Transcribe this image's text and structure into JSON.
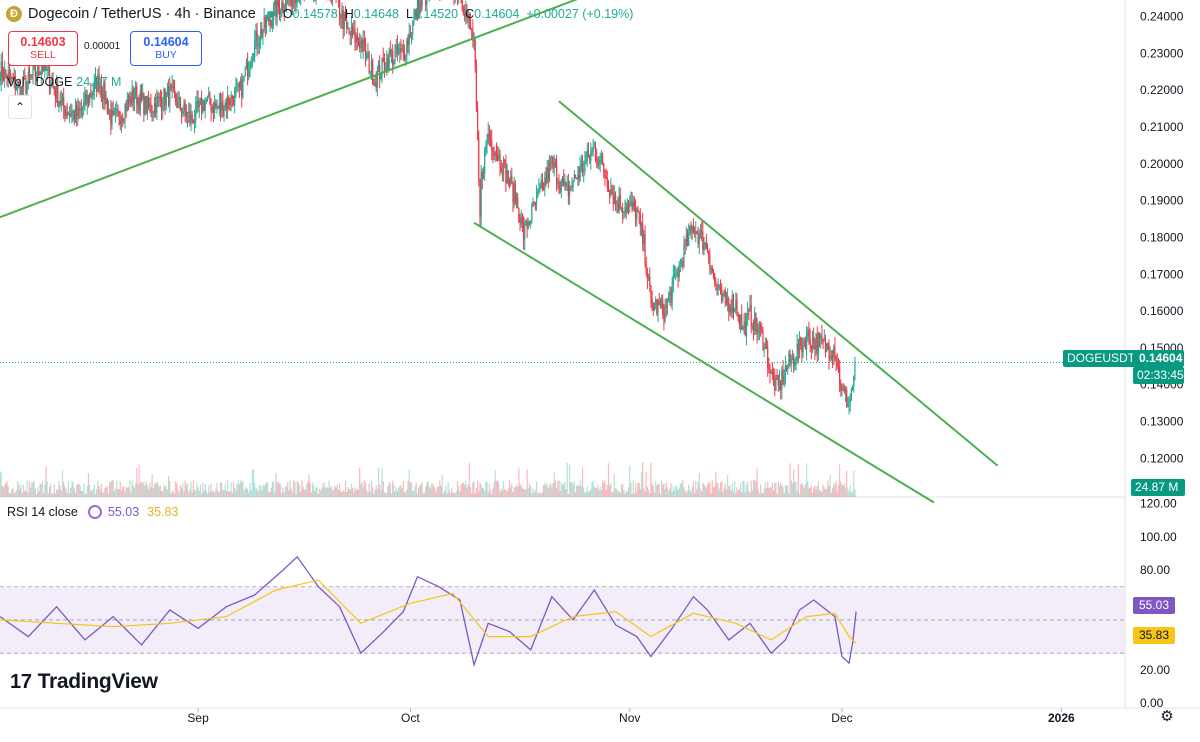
{
  "header": {
    "logo_text": "Ð",
    "title": "Dogecoin / TetherUS · 4h · Binance",
    "open_label": "O",
    "open": "0.14578",
    "high_label": "H",
    "high": "0.14648",
    "low_label": "L",
    "low": "0.14520",
    "close_label": "C",
    "close": "0.14604",
    "change": "+0.00027 (+0.19%)"
  },
  "trade": {
    "sell_price": "0.14603",
    "sell_label": "SELL",
    "spread": "0.00001",
    "buy_price": "0.14604",
    "buy_label": "BUY"
  },
  "volume_legend": {
    "label": "Vol · DOGE",
    "value": "24.87 M"
  },
  "collapse_icon": "chevron-up-icon",
  "rsi_legend": {
    "label": "RSI 14 close",
    "rsi": "55.03",
    "ma": "35.83"
  },
  "branding": {
    "name": "TradingView",
    "mark": "17"
  },
  "price_tags": {
    "symbol": "DOGEUSDT",
    "last_price": "0.14604",
    "countdown": "02:33:45",
    "volume": "24.87 M",
    "rsi": "55.03",
    "rsi_ma": "35.83"
  },
  "colors": {
    "up": "#22ab94",
    "down": "#f23645",
    "trendline": "#4caf50",
    "rsi": "#7e57c2",
    "rsi_ma": "#f5c518",
    "rsi_band": "#ede7f6"
  },
  "chart_data": {
    "type": "candlestick",
    "symbol": "DOGEUSDT",
    "interval": "4h",
    "exchange": "Binance",
    "price_axis": {
      "ticks": [
        "0.24000",
        "0.23000",
        "0.22000",
        "0.21000",
        "0.20000",
        "0.19000",
        "0.18000",
        "0.17000",
        "0.16000",
        "0.15000",
        "0.14000",
        "0.13000",
        "0.12000"
      ],
      "range": [
        0.1095,
        0.2445
      ]
    },
    "time_axis": {
      "labels": [
        "Sep",
        "Oct",
        "Nov",
        "Dec",
        "2026"
      ],
      "label_dates": [
        "2025-09-01",
        "2025-10-01",
        "2025-11-01",
        "2025-12-01",
        "2026-01-01"
      ],
      "range": [
        "2025-08-04",
        "2026-01-10"
      ]
    },
    "price_path": [
      [
        "2025-08-04",
        0.2255
      ],
      [
        "2025-08-07",
        0.22
      ],
      [
        "2025-08-10",
        0.227
      ],
      [
        "2025-08-13",
        0.215
      ],
      [
        "2025-08-15",
        0.213
      ],
      [
        "2025-08-18",
        0.223
      ],
      [
        "2025-08-20",
        0.211
      ],
      [
        "2025-08-23",
        0.219
      ],
      [
        "2025-08-25",
        0.215
      ],
      [
        "2025-08-28",
        0.219
      ],
      [
        "2025-08-31",
        0.212
      ],
      [
        "2025-09-02",
        0.217
      ],
      [
        "2025-09-04",
        0.215
      ],
      [
        "2025-09-07",
        0.22
      ],
      [
        "2025-09-09",
        0.233
      ],
      [
        "2025-09-12",
        0.242
      ],
      [
        "2025-09-15",
        0.247
      ],
      [
        "2025-09-18",
        0.246
      ],
      [
        "2025-09-20",
        0.248
      ],
      [
        "2025-09-22",
        0.236
      ],
      [
        "2025-09-24",
        0.233
      ],
      [
        "2025-09-26",
        0.223
      ],
      [
        "2025-09-28",
        0.229
      ],
      [
        "2025-09-30",
        0.23
      ],
      [
        "2025-10-02",
        0.242
      ],
      [
        "2025-10-04",
        0.248
      ],
      [
        "2025-10-06",
        0.25
      ],
      [
        "2025-10-08",
        0.247
      ],
      [
        "2025-10-10",
        0.233
      ],
      [
        "2025-10-10T20",
        0.185
      ],
      [
        "2025-10-11",
        0.196
      ],
      [
        "2025-10-12",
        0.208
      ],
      [
        "2025-10-14",
        0.2
      ],
      [
        "2025-10-16",
        0.19
      ],
      [
        "2025-10-17",
        0.181
      ],
      [
        "2025-10-18",
        0.186
      ],
      [
        "2025-10-20",
        0.195
      ],
      [
        "2025-10-21",
        0.2
      ],
      [
        "2025-10-23",
        0.192
      ],
      [
        "2025-10-25",
        0.198
      ],
      [
        "2025-10-27",
        0.204
      ],
      [
        "2025-10-28",
        0.2
      ],
      [
        "2025-10-30",
        0.19
      ],
      [
        "2025-11-01",
        0.188
      ],
      [
        "2025-11-02",
        0.187
      ],
      [
        "2025-11-03",
        0.178
      ],
      [
        "2025-11-04",
        0.162
      ],
      [
        "2025-11-05",
        0.161
      ],
      [
        "2025-11-06",
        0.16
      ],
      [
        "2025-11-07",
        0.166
      ],
      [
        "2025-11-09",
        0.178
      ],
      [
        "2025-11-10",
        0.183
      ],
      [
        "2025-11-11",
        0.18
      ],
      [
        "2025-11-12",
        0.177
      ],
      [
        "2025-11-13",
        0.168
      ],
      [
        "2025-11-14",
        0.163
      ],
      [
        "2025-11-16",
        0.162
      ],
      [
        "2025-11-17",
        0.155
      ],
      [
        "2025-11-18",
        0.159
      ],
      [
        "2025-11-20",
        0.152
      ],
      [
        "2025-11-21",
        0.142
      ],
      [
        "2025-11-22",
        0.139
      ],
      [
        "2025-11-23",
        0.144
      ],
      [
        "2025-11-25",
        0.15
      ],
      [
        "2025-11-26",
        0.153
      ],
      [
        "2025-11-28",
        0.151
      ],
      [
        "2025-11-29",
        0.15
      ],
      [
        "2025-11-30",
        0.15
      ],
      [
        "2025-12-01",
        0.138
      ],
      [
        "2025-12-02",
        0.135
      ],
      [
        "2025-12-02T12",
        0.14
      ],
      [
        "2025-12-03",
        0.146
      ]
    ],
    "trendlines": [
      {
        "name": "Rising support",
        "from": [
          "2025-08-04",
          0.1855
        ],
        "to": [
          "2025-10-27",
          0.2465
        ]
      },
      {
        "name": "Falling wedge resistance",
        "from": [
          "2025-10-22",
          0.217
        ],
        "to": [
          "2025-12-23",
          0.118
        ]
      },
      {
        "name": "Falling wedge support",
        "from": [
          "2025-10-10",
          0.184
        ],
        "to": [
          "2025-12-14",
          0.108
        ]
      }
    ],
    "last_price": 0.14604,
    "volume": {
      "last": "24.87 M"
    },
    "rsi": {
      "period": 14,
      "source": "close",
      "value": 55.03,
      "ma_value": 35.83,
      "axis_ticks": [
        "120.00",
        "100.00",
        "80.00",
        "60.00",
        "40.00",
        "20.00",
        "0.00"
      ],
      "range": [
        -3,
        124
      ],
      "bands": [
        30,
        70
      ],
      "midline": 50,
      "path": [
        [
          "2025-08-04",
          52
        ],
        [
          "2025-08-08",
          40
        ],
        [
          "2025-08-12",
          58
        ],
        [
          "2025-08-16",
          38
        ],
        [
          "2025-08-20",
          52
        ],
        [
          "2025-08-24",
          35
        ],
        [
          "2025-08-28",
          56
        ],
        [
          "2025-09-01",
          45
        ],
        [
          "2025-09-05",
          58
        ],
        [
          "2025-09-09",
          65
        ],
        [
          "2025-09-13",
          80
        ],
        [
          "2025-09-15",
          88
        ],
        [
          "2025-09-18",
          70
        ],
        [
          "2025-09-21",
          58
        ],
        [
          "2025-09-24",
          30
        ],
        [
          "2025-09-27",
          42
        ],
        [
          "2025-09-30",
          55
        ],
        [
          "2025-10-02",
          76
        ],
        [
          "2025-10-05",
          70
        ],
        [
          "2025-10-08",
          62
        ],
        [
          "2025-10-10",
          23
        ],
        [
          "2025-10-12",
          48
        ],
        [
          "2025-10-15",
          43
        ],
        [
          "2025-10-18",
          32
        ],
        [
          "2025-10-21",
          64
        ],
        [
          "2025-10-24",
          50
        ],
        [
          "2025-10-27",
          68
        ],
        [
          "2025-10-30",
          47
        ],
        [
          "2025-11-02",
          40
        ],
        [
          "2025-11-04",
          28
        ],
        [
          "2025-11-07",
          45
        ],
        [
          "2025-11-10",
          64
        ],
        [
          "2025-11-12",
          56
        ],
        [
          "2025-11-15",
          38
        ],
        [
          "2025-11-18",
          48
        ],
        [
          "2025-11-21",
          30
        ],
        [
          "2025-11-23",
          38
        ],
        [
          "2025-11-25",
          56
        ],
        [
          "2025-11-27",
          62
        ],
        [
          "2025-11-30",
          52
        ],
        [
          "2025-12-01",
          28
        ],
        [
          "2025-12-02",
          24
        ],
        [
          "2025-12-02T12",
          36
        ],
        [
          "2025-12-03",
          55
        ]
      ],
      "ma_path": [
        [
          "2025-08-04",
          50
        ],
        [
          "2025-08-12",
          48
        ],
        [
          "2025-08-20",
          46
        ],
        [
          "2025-08-28",
          48
        ],
        [
          "2025-09-05",
          52
        ],
        [
          "2025-09-12",
          68
        ],
        [
          "2025-09-18",
          74
        ],
        [
          "2025-09-24",
          48
        ],
        [
          "2025-10-01",
          60
        ],
        [
          "2025-10-07",
          66
        ],
        [
          "2025-10-12",
          40
        ],
        [
          "2025-10-18",
          40
        ],
        [
          "2025-10-24",
          52
        ],
        [
          "2025-10-30",
          55
        ],
        [
          "2025-11-04",
          40
        ],
        [
          "2025-11-10",
          54
        ],
        [
          "2025-11-16",
          48
        ],
        [
          "2025-11-21",
          38
        ],
        [
          "2025-11-26",
          52
        ],
        [
          "2025-11-30",
          54
        ],
        [
          "2025-12-02",
          40
        ],
        [
          "2025-12-03",
          36
        ]
      ]
    }
  }
}
